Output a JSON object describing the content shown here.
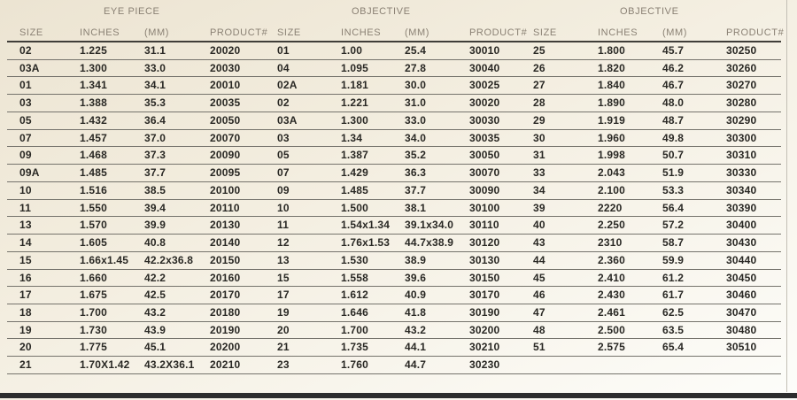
{
  "page": {
    "description": "Eye piece and objective size specification table"
  },
  "table": {
    "group_headers": [
      "EYE PIECE",
      "OBJECTIVE",
      "OBJECTIVE"
    ],
    "column_headers": [
      "SIZE",
      "INCHES",
      "(MM)",
      "PRODUCT#"
    ],
    "rows": [
      [
        "02",
        "1.225",
        "31.1",
        "20020",
        "01",
        "1.00",
        "25.4",
        "30010",
        "25",
        "1.800",
        "45.7",
        "30250"
      ],
      [
        "03A",
        "1.300",
        "33.0",
        "20030",
        "04",
        "1.095",
        "27.8",
        "30040",
        "26",
        "1.820",
        "46.2",
        "30260"
      ],
      [
        "01",
        "1.341",
        "34.1",
        "20010",
        "02A",
        "1.181",
        "30.0",
        "30025",
        "27",
        "1.840",
        "46.7",
        "30270"
      ],
      [
        "03",
        "1.388",
        "35.3",
        "20035",
        "02",
        "1.221",
        "31.0",
        "30020",
        "28",
        "1.890",
        "48.0",
        "30280"
      ],
      [
        "05",
        "1.432",
        "36.4",
        "20050",
        "03A",
        "1.300",
        "33.0",
        "30030",
        "29",
        "1.919",
        "48.7",
        "30290"
      ],
      [
        "07",
        "1.457",
        "37.0",
        "20070",
        "03",
        "1.34",
        "34.0",
        "30035",
        "30",
        "1.960",
        "49.8",
        "30300"
      ],
      [
        "09",
        "1.468",
        "37.3",
        "20090",
        "05",
        "1.387",
        "35.2",
        "30050",
        "31",
        "1.998",
        "50.7",
        "30310"
      ],
      [
        "09A",
        "1.485",
        "37.7",
        "20095",
        "07",
        "1.429",
        "36.3",
        "30070",
        "33",
        "2.043",
        "51.9",
        "30330"
      ],
      [
        "10",
        "1.516",
        "38.5",
        "20100",
        "09",
        "1.485",
        "37.7",
        "30090",
        "34",
        "2.100",
        "53.3",
        "30340"
      ],
      [
        "11",
        "1.550",
        "39.4",
        "20110",
        "10",
        "1.500",
        "38.1",
        "30100",
        "39",
        "2220",
        "56.4",
        "30390"
      ],
      [
        "13",
        "1.570",
        "39.9",
        "20130",
        "11",
        "1.54x1.34",
        "39.1x34.0",
        "30110",
        "40",
        "2.250",
        "57.2",
        "30400"
      ],
      [
        "14",
        "1.605",
        "40.8",
        "20140",
        "12",
        "1.76x1.53",
        "44.7x38.9",
        "30120",
        "43",
        "2310",
        "58.7",
        "30430"
      ],
      [
        "15",
        "1.66x1.45",
        "42.2x36.8",
        "20150",
        "13",
        "1.530",
        "38.9",
        "30130",
        "44",
        "2.360",
        "59.9",
        "30440"
      ],
      [
        "16",
        "1.660",
        "42.2",
        "20160",
        "15",
        "1.558",
        "39.6",
        "30150",
        "45",
        "2.410",
        "61.2",
        "30450"
      ],
      [
        "17",
        "1.675",
        "42.5",
        "20170",
        "17",
        "1.612",
        "40.9",
        "30170",
        "46",
        "2.430",
        "61.7",
        "30460"
      ],
      [
        "18",
        "1.700",
        "43.2",
        "20180",
        "19",
        "1.646",
        "41.8",
        "30190",
        "47",
        "2.461",
        "62.5",
        "30470"
      ],
      [
        "19",
        "1.730",
        "43.9",
        "20190",
        "20",
        "1.700",
        "43.2",
        "30200",
        "48",
        "2.500",
        "63.5",
        "30480"
      ],
      [
        "20",
        "1.775",
        "45.1",
        "20200",
        "21",
        "1.735",
        "44.1",
        "30210",
        "51",
        "2.575",
        "65.4",
        "30510"
      ],
      [
        "21",
        "1.70X1.42",
        "43.2X36.1",
        "20210",
        "23",
        "1.760",
        "44.7",
        "30230",
        "",
        "",
        "",
        ""
      ]
    ]
  },
  "colors": {
    "background_top": "#ece4d2",
    "background_bottom": "#fdfdfa",
    "header_text": "#8a8174",
    "data_text": "#292824",
    "row_line": "#75736c",
    "header_rule": "#403e39",
    "bottom_bar": "#2d2d2e",
    "right_edge_line": "#c3bfb5"
  }
}
